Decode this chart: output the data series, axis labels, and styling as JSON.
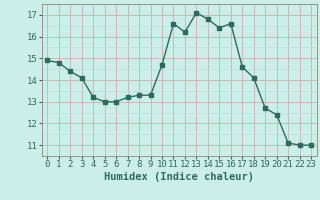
{
  "x": [
    0,
    1,
    2,
    3,
    4,
    5,
    6,
    7,
    8,
    9,
    10,
    11,
    12,
    13,
    14,
    15,
    16,
    17,
    18,
    19,
    20,
    21,
    22,
    23
  ],
  "y": [
    14.9,
    14.8,
    14.4,
    14.1,
    13.2,
    13.0,
    13.0,
    13.2,
    13.3,
    13.3,
    14.7,
    16.6,
    16.2,
    17.1,
    16.8,
    16.4,
    16.6,
    14.6,
    14.1,
    12.7,
    12.4,
    11.1,
    11.0,
    11.0
  ],
  "xlabel": "Humidex (Indice chaleur)",
  "ylim": [
    10.5,
    17.5
  ],
  "xlim": [
    -0.5,
    23.5
  ],
  "yticks": [
    11,
    12,
    13,
    14,
    15,
    16,
    17
  ],
  "xticks": [
    0,
    1,
    2,
    3,
    4,
    5,
    6,
    7,
    8,
    9,
    10,
    11,
    12,
    13,
    14,
    15,
    16,
    17,
    18,
    19,
    20,
    21,
    22,
    23
  ],
  "line_color": "#2e6b5e",
  "bg_color": "#cceee8",
  "grid_color_major": "#c4a8a8",
  "grid_color_minor": "#b8ddd8",
  "marker": "s",
  "marker_size": 2.5,
  "line_width": 1.0,
  "xlabel_fontsize": 7.5,
  "tick_fontsize": 6.5
}
